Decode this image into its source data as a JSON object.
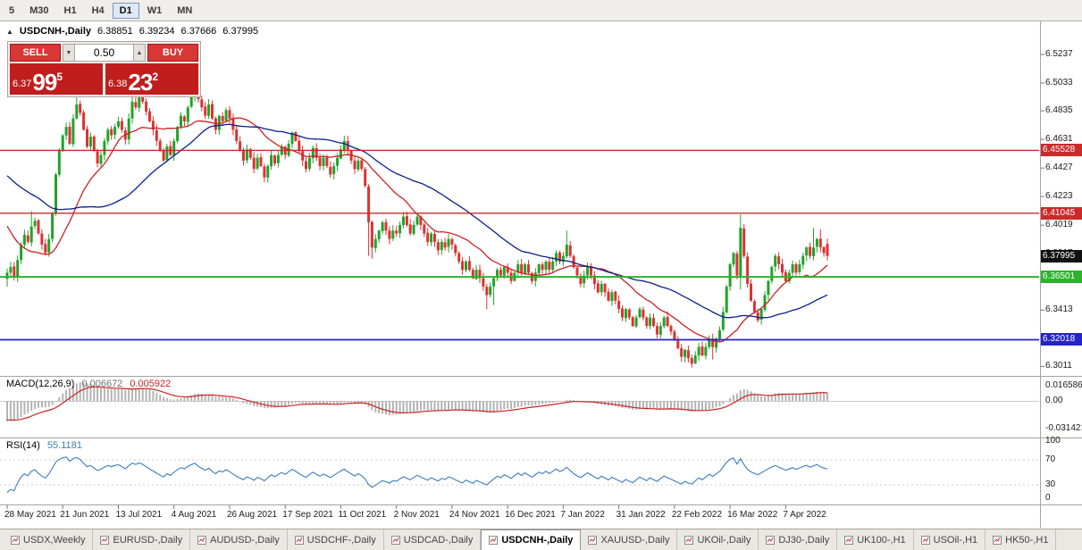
{
  "theme": {
    "sell_buy_button": "#d93636",
    "sell_buy_button_border": "#a01818",
    "price_panel": "#c01d1d",
    "toolbar_bg": "#f0eeec",
    "tabs_bg": "#ebe8e4",
    "active_tab_bg": "#ffffff"
  },
  "toolbar": {
    "timeframes": [
      {
        "label": "5",
        "active": false
      },
      {
        "label": "M30",
        "active": false
      },
      {
        "label": "H1",
        "active": false
      },
      {
        "label": "H4",
        "active": false
      },
      {
        "label": "D1",
        "active": true
      },
      {
        "label": "W1",
        "active": false
      },
      {
        "label": "MN",
        "active": false
      }
    ]
  },
  "chart_header": {
    "collapse_icon": "▲",
    "symbol": "USDCNH-,Daily",
    "open": "6.38851",
    "high": "6.39234",
    "low": "6.37666",
    "close": "6.37995"
  },
  "trade_widget": {
    "sell_label": "SELL",
    "buy_label": "BUY",
    "volume": "0.50",
    "volume_down_icon": "▼",
    "volume_up_icon": "▲",
    "sell_price": {
      "base": "6.37",
      "big": "99",
      "sup": "5"
    },
    "buy_price": {
      "base": "6.38",
      "big": "23",
      "sup": "2"
    }
  },
  "indicators": {
    "macd": {
      "title": "MACD(12,26,9)",
      "value": "0.006672",
      "signal_value": "0.005922",
      "axis": [
        {
          "text": "0.016586",
          "value": 0.016586
        },
        {
          "text": "0.00",
          "value": 0
        },
        {
          "text": "-0.031421",
          "value": -0.031421
        }
      ]
    },
    "rsi": {
      "title": "RSI(14)",
      "value": "55.1181",
      "axis": [
        {
          "text": "100",
          "value": 100
        },
        {
          "text": "70",
          "value": 70
        },
        {
          "text": "30",
          "value": 30
        },
        {
          "text": "0",
          "value": 0
        }
      ],
      "levels": [
        70,
        30
      ]
    }
  },
  "y_axis": {
    "ticks": [
      "6.5237",
      "6.5033",
      "6.4835",
      "6.4631",
      "6.4427",
      "6.4223",
      "6.4019",
      "6.3817",
      "6.3617",
      "6.3413",
      "6.3211",
      "6.3011"
    ]
  },
  "levels": [
    {
      "label": "6.45528",
      "price": 6.45528,
      "color": "#c92b2b",
      "line_width": 1.4
    },
    {
      "label": "6.41045",
      "price": 6.41045,
      "color": "#c92b2b",
      "line_width": 1.4
    },
    {
      "label": "6.37995",
      "price": 6.37995,
      "color": "#111111",
      "line_width": 0
    },
    {
      "label": "6.36501",
      "price": 6.36501,
      "color": "#2db32d",
      "line_width": 2
    },
    {
      "label": "6.32018",
      "price": 6.32018,
      "color": "#2424c9",
      "line_width": 1.8
    }
  ],
  "x_axis": {
    "labels": [
      {
        "bar": 0,
        "text": "28 May 2021"
      },
      {
        "bar": 16,
        "text": "21 Jun 2021"
      },
      {
        "bar": 32,
        "text": "13 Jul 2021"
      },
      {
        "bar": 48,
        "text": "4 Aug 2021"
      },
      {
        "bar": 64,
        "text": "26 Aug 2021"
      },
      {
        "bar": 80,
        "text": "17 Sep 2021"
      },
      {
        "bar": 96,
        "text": "11 Oct 2021"
      },
      {
        "bar": 112,
        "text": "2 Nov 2021"
      },
      {
        "bar": 128,
        "text": "24 Nov 2021"
      },
      {
        "bar": 144,
        "text": "16 Dec 2021"
      },
      {
        "bar": 160,
        "text": "7 Jan 2022"
      },
      {
        "bar": 176,
        "text": "31 Jan 2022"
      },
      {
        "bar": 192,
        "text": "22 Feb 2022"
      },
      {
        "bar": 208,
        "text": "16 Mar 2022"
      },
      {
        "bar": 224,
        "text": "7 Apr 2022"
      }
    ]
  },
  "tabs": {
    "items": [
      {
        "label": "USDX,Weekly",
        "active": false
      },
      {
        "label": "EURUSD-,Daily",
        "active": false
      },
      {
        "label": "AUDUSD-,Daily",
        "active": false
      },
      {
        "label": "USDCHF-,Daily",
        "active": false
      },
      {
        "label": "USDCAD-,Daily",
        "active": false
      },
      {
        "label": "USDCNH-,Daily",
        "active": true
      },
      {
        "label": "XAUUSD-,Daily",
        "active": false
      },
      {
        "label": "UKOil-,Daily",
        "active": false
      },
      {
        "label": "DJ30-,Daily",
        "active": false
      },
      {
        "label": "UK100-,H1",
        "active": false
      },
      {
        "label": "USOil-,H1",
        "active": false
      },
      {
        "label": "HK50-,H1",
        "active": false
      }
    ]
  },
  "chart_data": {
    "type": "candlestick",
    "symbol": "USDCNH",
    "timeframe": "Daily",
    "title": "USDCNH-,Daily",
    "current_ohlc": {
      "open": 6.38851,
      "high": 6.39234,
      "low": 6.37666,
      "close": 6.37995
    },
    "price_range": [
      6.295,
      6.546
    ],
    "bars_per_date_label": 16,
    "closes": [
      6.368,
      6.372,
      6.365,
      6.377,
      6.388,
      6.395,
      6.39,
      6.401,
      6.405,
      6.396,
      6.388,
      6.382,
      6.392,
      6.41,
      6.438,
      6.455,
      6.466,
      6.472,
      6.46,
      6.478,
      6.488,
      6.482,
      6.47,
      6.458,
      6.465,
      6.455,
      6.446,
      6.452,
      6.462,
      6.47,
      6.466,
      6.472,
      6.476,
      6.47,
      6.463,
      6.478,
      6.49,
      6.486,
      6.494,
      6.49,
      6.483,
      6.476,
      6.47,
      6.462,
      6.455,
      6.448,
      6.458,
      6.452,
      6.462,
      6.472,
      6.48,
      6.476,
      6.486,
      6.494,
      6.5,
      6.492,
      6.486,
      6.48,
      6.488,
      6.478,
      6.47,
      6.48,
      6.476,
      6.484,
      6.478,
      6.47,
      6.462,
      6.455,
      6.448,
      6.456,
      6.45,
      6.442,
      6.45,
      6.444,
      6.436,
      6.444,
      6.452,
      6.446,
      6.452,
      6.458,
      6.452,
      6.46,
      6.468,
      6.462,
      6.455,
      6.448,
      6.442,
      6.45,
      6.457,
      6.45,
      6.444,
      6.45,
      6.444,
      6.438,
      6.444,
      6.45,
      6.456,
      6.462,
      6.455,
      6.448,
      6.442,
      6.448,
      6.442,
      6.43,
      6.404,
      6.386,
      6.392,
      6.398,
      6.404,
      6.398,
      6.392,
      6.398,
      6.396,
      6.402,
      6.408,
      6.402,
      6.396,
      6.402,
      6.408,
      6.402,
      6.396,
      6.39,
      6.396,
      6.39,
      6.384,
      6.39,
      6.386,
      6.392,
      6.388,
      6.382,
      6.376,
      6.37,
      6.376,
      6.37,
      6.364,
      6.37,
      6.364,
      6.358,
      6.352,
      6.358,
      6.364,
      6.37,
      6.366,
      6.372,
      6.368,
      6.362,
      6.368,
      6.374,
      6.368,
      6.374,
      6.368,
      6.362,
      6.368,
      6.374,
      6.37,
      6.376,
      6.37,
      6.376,
      6.382,
      6.376,
      6.38,
      6.388,
      6.38,
      6.372,
      6.366,
      6.36,
      6.366,
      6.372,
      6.366,
      6.36,
      6.354,
      6.36,
      6.354,
      6.348,
      6.354,
      6.348,
      6.342,
      6.336,
      6.342,
      6.336,
      6.33,
      6.336,
      6.342,
      6.336,
      6.33,
      6.336,
      6.33,
      6.324,
      6.33,
      6.336,
      6.33,
      6.326,
      6.32,
      6.314,
      6.308,
      6.313,
      6.307,
      6.303,
      6.309,
      6.315,
      6.309,
      6.315,
      6.321,
      6.315,
      6.321,
      6.327,
      6.34,
      6.358,
      6.374,
      6.382,
      6.366,
      6.4,
      6.38,
      6.36,
      6.348,
      6.34,
      6.334,
      6.342,
      6.352,
      6.362,
      6.372,
      6.38,
      6.374,
      6.368,
      6.362,
      6.368,
      6.374,
      6.368,
      6.374,
      6.38,
      6.386,
      6.38,
      6.386,
      6.392,
      6.386,
      6.382,
      6.38
    ],
    "warmup_closes": [
      6.47,
      6.474,
      6.468,
      6.472,
      6.466,
      6.47,
      6.464,
      6.468,
      6.462,
      6.466,
      6.47,
      6.474,
      6.478,
      6.472,
      6.466,
      6.47,
      6.464,
      6.458,
      6.462,
      6.466,
      6.46,
      6.464,
      6.458,
      6.462,
      6.456,
      6.46,
      6.454,
      6.448,
      6.442,
      6.436,
      6.43,
      6.424,
      6.418,
      6.412,
      6.406,
      6.4,
      6.394,
      6.388,
      6.382,
      6.376,
      6.372,
      6.368,
      6.371,
      6.367,
      6.369
    ],
    "wick_overrides": [
      [
        0,
        "l",
        6.358
      ],
      [
        7,
        "h",
        6.412
      ],
      [
        20,
        "h",
        6.493
      ],
      [
        36,
        "h",
        6.497
      ],
      [
        38,
        "h",
        6.4975
      ],
      [
        54,
        "h",
        6.5035
      ],
      [
        104,
        "l",
        6.38
      ],
      [
        105,
        "l",
        6.378
      ],
      [
        138,
        "l",
        6.342
      ],
      [
        140,
        "l",
        6.345
      ],
      [
        161,
        "h",
        6.398
      ],
      [
        195,
        "l",
        6.304
      ],
      [
        197,
        "l",
        6.301
      ],
      [
        199,
        "l",
        6.305
      ],
      [
        203,
        "l",
        6.306
      ],
      [
        211,
        "h",
        6.4095
      ],
      [
        211,
        "l",
        6.356
      ],
      [
        232,
        "h",
        6.4
      ],
      [
        234,
        "h",
        6.399
      ]
    ],
    "ma_fast_period": 20,
    "ma_slow_period": 45,
    "macd_params": [
      12,
      26,
      9
    ],
    "rsi_period": 14,
    "colors": {
      "up_candle": "#1fa32a",
      "down_candle": "#dd3232",
      "ma_fast": "#cc2222",
      "ma_slow": "#0a1e8c",
      "macd_histogram": "#b3b3b3",
      "macd_signal": "#cc2222",
      "rsi_line": "#3a7dbf"
    }
  }
}
